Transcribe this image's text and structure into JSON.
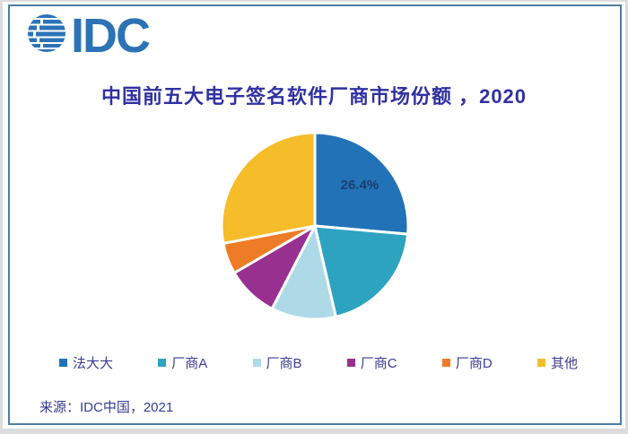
{
  "logo": {
    "text": "IDC"
  },
  "title": "中国前五大电子签名软件厂商市场份额 ，2020",
  "source": "来源：IDC中国，2021",
  "chart_data": {
    "type": "pie",
    "title": "中国前五大电子签名软件厂商市场份额，2020",
    "direction": "clockwise",
    "start_angle_deg": 0,
    "legend_position": "bottom",
    "series": [
      {
        "name": "法大大",
        "value": 26.4,
        "color": "#2272B8"
      },
      {
        "name": "厂商A",
        "value": 20.0,
        "color": "#2EA3C0"
      },
      {
        "name": "厂商B",
        "value": 11.2,
        "color": "#AEDAE8"
      },
      {
        "name": "厂商C",
        "value": 9.0,
        "color": "#98308F"
      },
      {
        "name": "厂商D",
        "value": 5.4,
        "color": "#EE7B25"
      },
      {
        "name": "其他",
        "value": 28.0,
        "color": "#F5BD29"
      }
    ],
    "data_label": {
      "text": "26.4%",
      "color": "#1C3E6E"
    }
  },
  "colors": {
    "logo_blue": "#2C73B6",
    "frame_border": "#4E7EA3",
    "title_text": "#3131A2",
    "legend_text": "#3C3C92",
    "source_text": "#363C90"
  }
}
